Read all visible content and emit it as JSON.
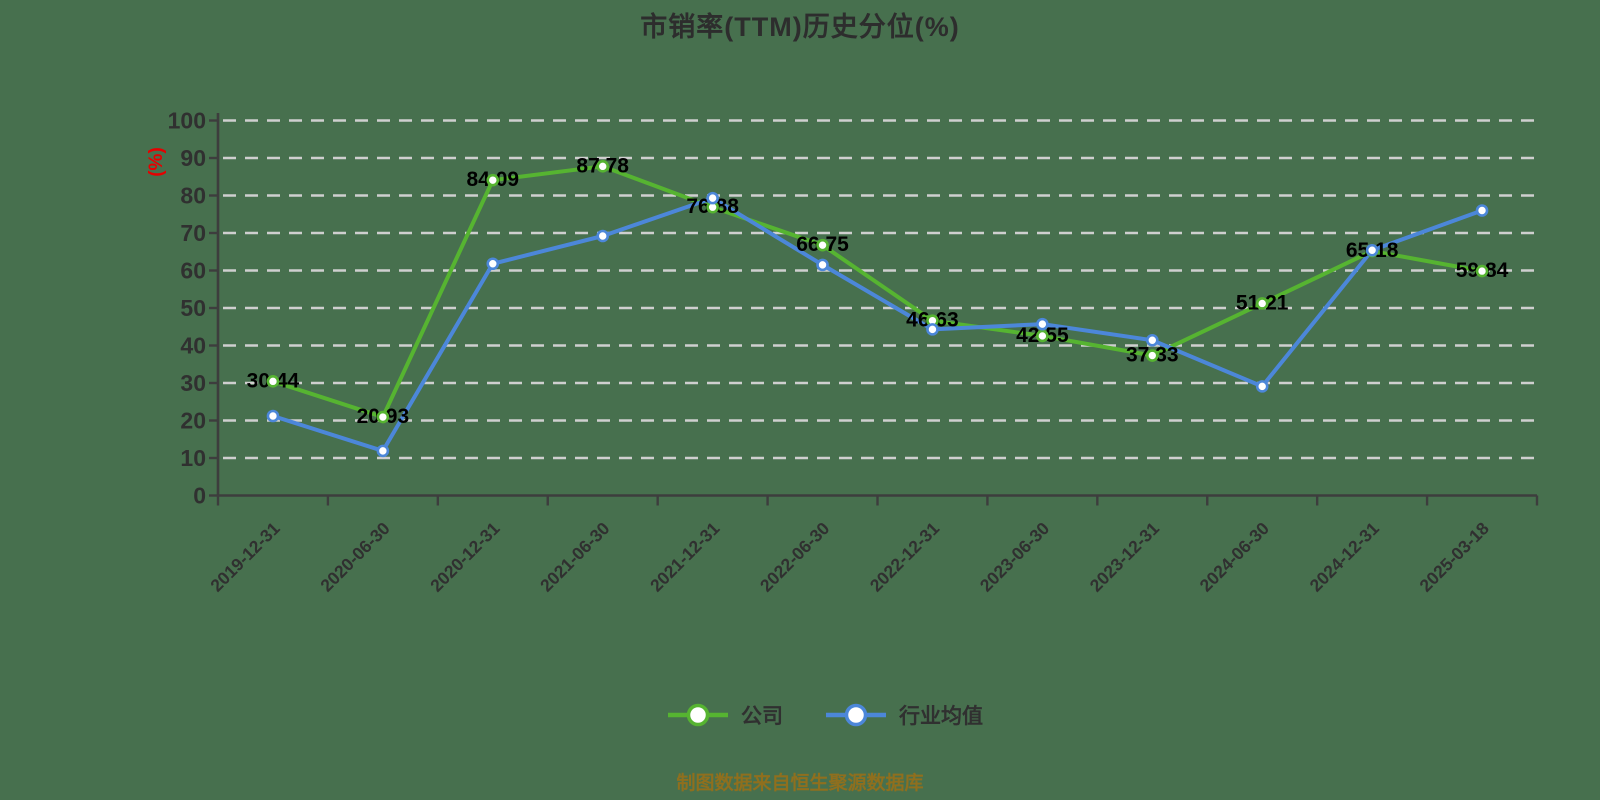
{
  "title": "市销率(TTM)历史分位(%)",
  "y_axis_unit_label": "(%)",
  "footer": {
    "source_note": "制图数据来自恒生聚源数据库"
  },
  "colors": {
    "background": "#47704e",
    "grid": "#cfcfcf",
    "axis": "#3d3d3d",
    "title_text": "#2d2d2d",
    "tick_text": "#303030",
    "data_label": "#000000",
    "unit_label": "#e60000",
    "footer_text": "#8f6f1e",
    "marker_fill": "#ffffff",
    "company": "#56b431",
    "industry": "#4c87d9"
  },
  "chart_data": {
    "type": "line",
    "categories": [
      "2019-12-31",
      "2020-06-30",
      "2020-12-31",
      "2021-06-30",
      "2021-12-31",
      "2022-06-30",
      "2022-12-31",
      "2023-06-30",
      "2023-12-31",
      "2024-06-30",
      "2024-12-31",
      "2025-03-18"
    ],
    "series": [
      {
        "name": "公司",
        "color": "#56b431",
        "show_labels": true,
        "values": [
          30.44,
          20.93,
          84.09,
          87.78,
          76.88,
          66.75,
          46.63,
          42.55,
          37.33,
          51.21,
          65.18,
          59.84
        ]
      },
      {
        "name": "行业均值",
        "color": "#4c87d9",
        "show_labels": false,
        "values": [
          21.2,
          11.9,
          61.8,
          69.2,
          79.3,
          61.5,
          44.3,
          45.7,
          41.4,
          29.1,
          65.4,
          76.0
        ]
      }
    ],
    "ylim": [
      0,
      100
    ],
    "y_ticks": [
      0,
      10,
      20,
      30,
      40,
      50,
      60,
      70,
      80,
      90,
      100
    ],
    "xlabel": "",
    "ylabel": "(%)",
    "grid": "horizontal-dashed",
    "legend_position": "bottom"
  }
}
